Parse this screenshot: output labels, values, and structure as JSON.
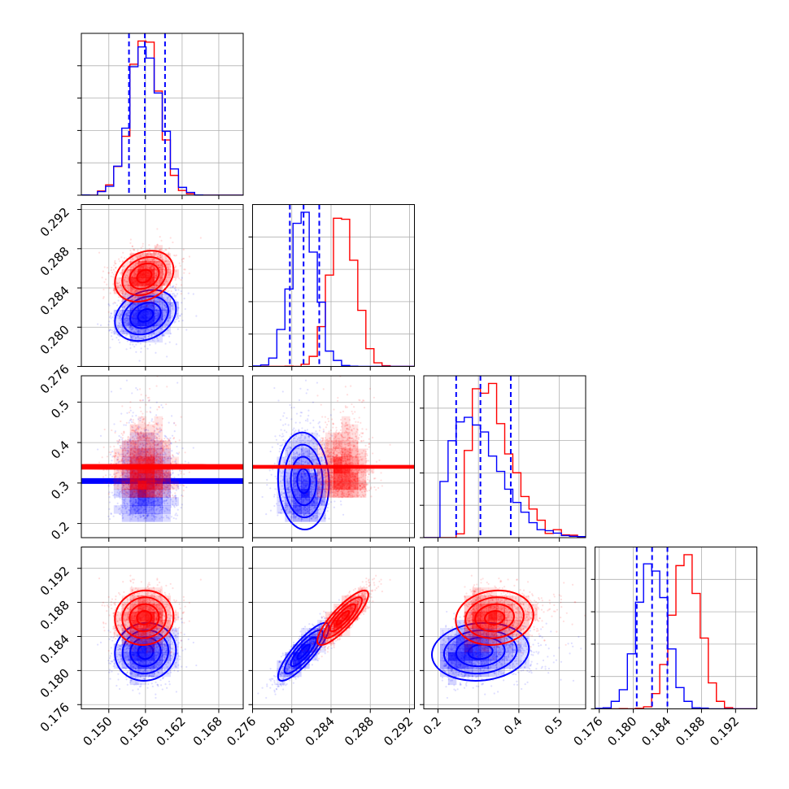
{
  "chart_data": {
    "type": "corner",
    "colors": {
      "blue": "#0000ff",
      "red": "#ff0000",
      "grid": "#b0b0b0",
      "axes": "#000000"
    },
    "grid": true,
    "parameters": [
      {
        "lim": [
          0.1455,
          0.172
        ],
        "ticks": [
          0.15,
          0.156,
          0.162,
          0.168
        ],
        "tick_labels": [
          "0.150",
          "0.156",
          "0.162",
          "0.168"
        ]
      },
      {
        "lim": [
          0.276,
          0.2925
        ],
        "ticks": [
          0.276,
          0.28,
          0.284,
          0.288,
          0.292
        ],
        "tick_labels": [
          "0.276",
          "0.280",
          "0.284",
          "0.288",
          "0.292"
        ]
      },
      {
        "lim": [
          0.165,
          0.565
        ],
        "ticks": [
          0.2,
          0.3,
          0.4,
          0.5
        ],
        "tick_labels": [
          "0.2",
          "0.3",
          "0.4",
          "0.5"
        ]
      },
      {
        "lim": [
          0.1755,
          0.1945
        ],
        "ticks": [
          0.176,
          0.18,
          0.184,
          0.188,
          0.192
        ],
        "tick_labels": [
          "0.176",
          "0.180",
          "0.184",
          "0.188",
          "0.192"
        ]
      }
    ],
    "samples": [
      {
        "name": "",
        "color": "blue",
        "mean": [
          0.156,
          0.2812,
          0.305,
          0.1822
        ],
        "std": [
          0.0025,
          0.0013,
          0.06,
          0.0017
        ],
        "corr": [
          [
            1,
            0.25,
            0,
            0.05
          ],
          [
            0.25,
            1,
            -0.05,
            0.85
          ],
          [
            0,
            -0.05,
            1,
            0.1
          ],
          [
            0.05,
            0.85,
            0.1,
            1
          ]
        ],
        "quantiles": [
          [
            0.1533,
            0.1559,
            0.1592
          ],
          [
            0.2798,
            0.2812,
            0.2828
          ],
          [
            0.245,
            0.305,
            0.38
          ],
          [
            0.1804,
            0.1822,
            0.184
          ]
        ]
      },
      {
        "name": "",
        "color": "red",
        "mean": [
          0.1558,
          0.2852,
          0.34,
          0.1862
        ],
        "std": [
          0.0024,
          0.0013,
          0.048,
          0.0016
        ],
        "corr": [
          [
            1,
            0.25,
            0,
            0.05
          ],
          [
            0.25,
            1,
            0,
            0.85
          ],
          [
            0,
            0,
            1,
            0.1
          ],
          [
            0.05,
            0.85,
            0.1,
            1
          ]
        ],
        "quantiles": []
      }
    ]
  }
}
